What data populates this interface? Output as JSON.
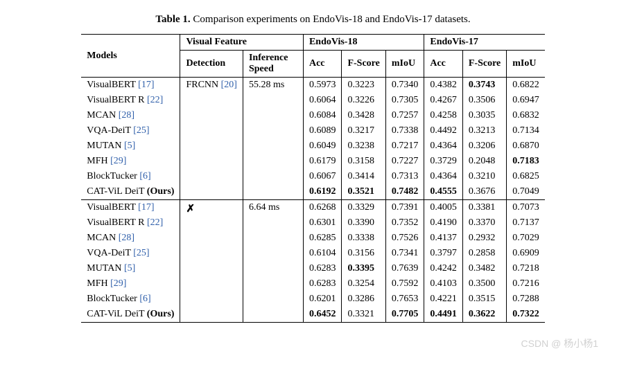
{
  "caption": {
    "label": "Table 1.",
    "text": "Comparison experiments on EndoVis-18 and EndoVis-17 datasets."
  },
  "header": {
    "models": "Models",
    "visual_feature": "Visual Feature",
    "detection": "Detection",
    "inference_speed": "Inference Speed",
    "endo18": "EndoVis-18",
    "endo17": "EndoVis-17",
    "acc": "Acc",
    "fscore": "F-Score",
    "miou": "mIoU"
  },
  "detection1": {
    "name": "FRCNN",
    "cite": "[20]",
    "speed": "55.28 ms"
  },
  "detection2": {
    "mark": "✗",
    "speed": "6.64 ms"
  },
  "group1": [
    {
      "name": "VisualBERT",
      "cite": "[17]",
      "ours": "",
      "acc18": "0.5973",
      "f18": "0.3223",
      "m18": "0.7340",
      "acc17": "0.4382",
      "f17": "0.3743",
      "m17": "0.6822",
      "bold": [
        "f17"
      ]
    },
    {
      "name": "VisualBERT R",
      "cite": "[22]",
      "ours": "",
      "acc18": "0.6064",
      "f18": "0.3226",
      "m18": "0.7305",
      "acc17": "0.4267",
      "f17": "0.3506",
      "m17": "0.6947",
      "bold": []
    },
    {
      "name": "MCAN",
      "cite": "[28]",
      "ours": "",
      "acc18": "0.6084",
      "f18": "0.3428",
      "m18": "0.7257",
      "acc17": "0.4258",
      "f17": "0.3035",
      "m17": "0.6832",
      "bold": []
    },
    {
      "name": "VQA-DeiT",
      "cite": "[25]",
      "ours": "",
      "acc18": "0.6089",
      "f18": "0.3217",
      "m18": "0.7338",
      "acc17": "0.4492",
      "f17": "0.3213",
      "m17": "0.7134",
      "bold": []
    },
    {
      "name": "MUTAN",
      "cite": "[5]",
      "ours": "",
      "acc18": "0.6049",
      "f18": "0.3238",
      "m18": "0.7217",
      "acc17": "0.4364",
      "f17": "0.3206",
      "m17": "0.6870",
      "bold": []
    },
    {
      "name": "MFH",
      "cite": "[29]",
      "ours": "",
      "acc18": "0.6179",
      "f18": "0.3158",
      "m18": "0.7227",
      "acc17": "0.3729",
      "f17": "0.2048",
      "m17": "0.7183",
      "bold": [
        "m17"
      ]
    },
    {
      "name": "BlockTucker",
      "cite": "[6]",
      "ours": "",
      "acc18": "0.6067",
      "f18": "0.3414",
      "m18": "0.7313",
      "acc17": "0.4364",
      "f17": "0.3210",
      "m17": "0.6825",
      "bold": []
    },
    {
      "name": "CAT-ViL DeiT",
      "cite": "",
      "ours": "(Ours)",
      "acc18": "0.6192",
      "f18": "0.3521",
      "m18": "0.7482",
      "acc17": "0.4555",
      "f17": "0.3676",
      "m17": "0.7049",
      "bold": [
        "acc18",
        "f18",
        "m18",
        "acc17"
      ]
    }
  ],
  "group2": [
    {
      "name": "VisualBERT",
      "cite": "[17]",
      "ours": "",
      "acc18": "0.6268",
      "f18": "0.3329",
      "m18": "0.7391",
      "acc17": "0.4005",
      "f17": "0.3381",
      "m17": "0.7073",
      "bold": []
    },
    {
      "name": "VisualBERT R",
      "cite": "[22]",
      "ours": "",
      "acc18": "0.6301",
      "f18": "0.3390",
      "m18": "0.7352",
      "acc17": "0.4190",
      "f17": "0.3370",
      "m17": "0.7137",
      "bold": []
    },
    {
      "name": "MCAN",
      "cite": "[28]",
      "ours": "",
      "acc18": "0.6285",
      "f18": "0.3338",
      "m18": "0.7526",
      "acc17": "0.4137",
      "f17": "0.2932",
      "m17": "0.7029",
      "bold": []
    },
    {
      "name": "VQA-DeiT",
      "cite": "[25]",
      "ours": "",
      "acc18": "0.6104",
      "f18": "0.3156",
      "m18": "0.7341",
      "acc17": "0.3797",
      "f17": "0.2858",
      "m17": "0.6909",
      "bold": []
    },
    {
      "name": "MUTAN",
      "cite": "[5]",
      "ours": "",
      "acc18": "0.6283",
      "f18": "0.3395",
      "m18": "0.7639",
      "acc17": "0.4242",
      "f17": "0.3482",
      "m17": "0.7218",
      "bold": [
        "f18"
      ]
    },
    {
      "name": "MFH",
      "cite": "[29]",
      "ours": "",
      "acc18": "0.6283",
      "f18": "0.3254",
      "m18": "0.7592",
      "acc17": "0.4103",
      "f17": "0.3500",
      "m17": "0.7216",
      "bold": []
    },
    {
      "name": "BlockTucker",
      "cite": "[6]",
      "ours": "",
      "acc18": "0.6201",
      "f18": "0.3286",
      "m18": "0.7653",
      "acc17": "0.4221",
      "f17": "0.3515",
      "m17": "0.7288",
      "bold": []
    },
    {
      "name": "CAT-ViL DeiT",
      "cite": "",
      "ours": "(Ours)",
      "acc18": "0.6452",
      "f18": "0.3321",
      "m18": "0.7705",
      "acc17": "0.4491",
      "f17": "0.3622",
      "m17": "0.7322",
      "bold": [
        "acc18",
        "m18",
        "acc17",
        "f17",
        "m17"
      ]
    }
  ],
  "watermark": "CSDN @ 杨小杨1",
  "colors": {
    "citation": "#2f5faa",
    "text": "#000000",
    "background": "#ffffff"
  }
}
